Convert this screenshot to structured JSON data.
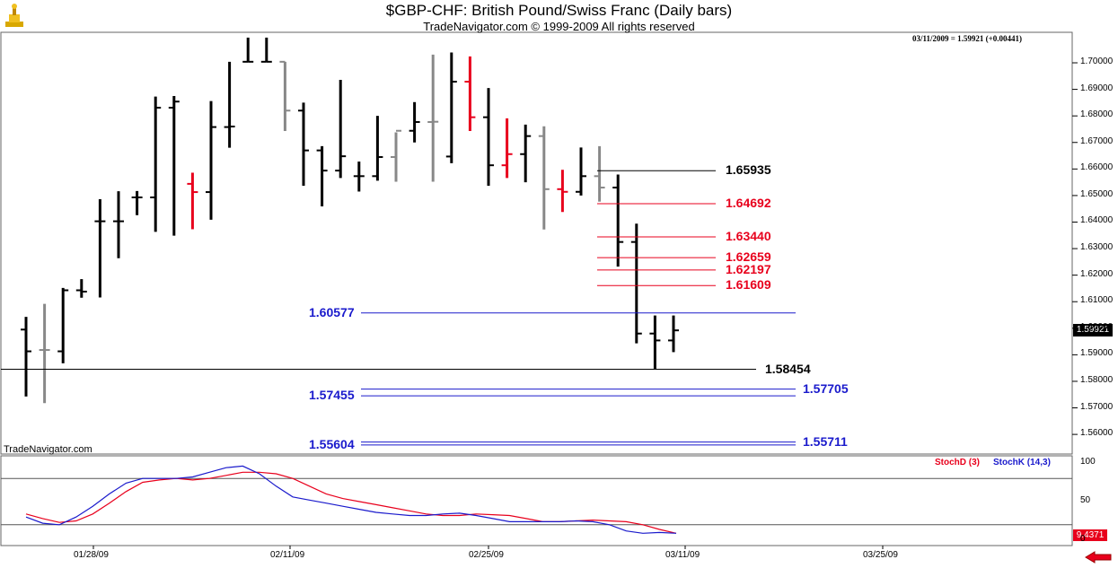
{
  "header": {
    "title": "$GBP-CHF:  British Pound/Swiss Franc  (Daily bars)",
    "subtitle": "TradeNavigator.com © 1999-2009 All rights reserved",
    "status": "03/11/2009 = 1.59921 (+0.00441)",
    "watermark": "TradeNavigator.com"
  },
  "colors": {
    "up": "#000000",
    "down": "#e8001c",
    "neutral": "#888888",
    "fib": "#e8001c",
    "blue": "#1a1acc",
    "stochD": "#e8001c",
    "stochK": "#1a1acc"
  },
  "chart_data": [
    {
      "type": "ohlc",
      "title": "$GBP-CHF:  British Pound/Swiss Franc  (Daily bars)",
      "ylim": [
        1.5526,
        1.7115
      ],
      "yticks": [
        "1.70000",
        "1.69000",
        "1.68000",
        "1.67000",
        "1.66000",
        "1.65000",
        "1.64000",
        "1.63000",
        "1.62000",
        "1.61000",
        "1.60000",
        "1.59000",
        "1.58000",
        "1.57000",
        "1.56000"
      ],
      "last_value": "1.59921",
      "xticks": [
        "01/28/09",
        "02/11/09",
        "02/25/09",
        "03/11/09",
        "03/25/09"
      ],
      "bars": [
        {
          "o": 1.5995,
          "h": 1.6043,
          "l": 1.5743,
          "c": 1.5913,
          "k": "up"
        },
        {
          "o": 1.5918,
          "h": 1.6092,
          "l": 1.5718,
          "c": 1.5918,
          "k": "neutral"
        },
        {
          "o": 1.5913,
          "h": 1.6152,
          "l": 1.5868,
          "c": 1.6143,
          "k": "up"
        },
        {
          "o": 1.6143,
          "h": 1.6185,
          "l": 1.6115,
          "c": 1.6138,
          "k": "up"
        },
        {
          "o": 1.6403,
          "h": 1.6486,
          "l": 1.6116,
          "c": 1.6403,
          "k": "up"
        },
        {
          "o": 1.6403,
          "h": 1.6516,
          "l": 1.6264,
          "c": 1.6403,
          "k": "up"
        },
        {
          "o": 1.6493,
          "h": 1.6517,
          "l": 1.6426,
          "c": 1.6493,
          "k": "up"
        },
        {
          "o": 1.6493,
          "h": 1.6873,
          "l": 1.6363,
          "c": 1.6831,
          "k": "up"
        },
        {
          "o": 1.6831,
          "h": 1.6875,
          "l": 1.6349,
          "c": 1.6854,
          "k": "up"
        },
        {
          "o": 1.6544,
          "h": 1.6586,
          "l": 1.6373,
          "c": 1.6513,
          "k": "down"
        },
        {
          "o": 1.6513,
          "h": 1.6856,
          "l": 1.6409,
          "c": 1.6758,
          "k": "up"
        },
        {
          "o": 1.6758,
          "h": 1.7004,
          "l": 1.668,
          "c": 1.676,
          "k": "up"
        },
        {
          "o": 1.7004,
          "h": 1.7095,
          "l": 1.7004,
          "c": 1.7004,
          "k": "up"
        },
        {
          "o": 1.7004,
          "h": 1.7095,
          "l": 1.7004,
          "c": 1.7004,
          "k": "up"
        },
        {
          "o": 1.7004,
          "h": 1.7004,
          "l": 1.6743,
          "c": 1.682,
          "k": "neutral"
        },
        {
          "o": 1.682,
          "h": 1.685,
          "l": 1.6537,
          "c": 1.667,
          "k": "up"
        },
        {
          "o": 1.667,
          "h": 1.6686,
          "l": 1.6459,
          "c": 1.6594,
          "k": "up"
        },
        {
          "o": 1.6594,
          "h": 1.6936,
          "l": 1.6566,
          "c": 1.6648,
          "k": "up"
        },
        {
          "o": 1.6573,
          "h": 1.6628,
          "l": 1.6515,
          "c": 1.6573,
          "k": "up"
        },
        {
          "o": 1.6573,
          "h": 1.68,
          "l": 1.6556,
          "c": 1.6645,
          "k": "up"
        },
        {
          "o": 1.6645,
          "h": 1.6738,
          "l": 1.6552,
          "c": 1.6744,
          "k": "neutral"
        },
        {
          "o": 1.6744,
          "h": 1.6852,
          "l": 1.67,
          "c": 1.6777,
          "k": "up"
        },
        {
          "o": 1.6777,
          "h": 1.7031,
          "l": 1.6552,
          "c": 1.6778,
          "k": "neutral"
        },
        {
          "o": 1.6647,
          "h": 1.7039,
          "l": 1.6622,
          "c": 1.6929,
          "k": "up"
        },
        {
          "o": 1.6929,
          "h": 1.7024,
          "l": 1.6743,
          "c": 1.6795,
          "k": "down"
        },
        {
          "o": 1.6795,
          "h": 1.6905,
          "l": 1.6537,
          "c": 1.6614,
          "k": "up"
        },
        {
          "o": 1.6614,
          "h": 1.6791,
          "l": 1.6566,
          "c": 1.6656,
          "k": "down"
        },
        {
          "o": 1.6656,
          "h": 1.6767,
          "l": 1.655,
          "c": 1.6724,
          "k": "up"
        },
        {
          "o": 1.6724,
          "h": 1.6761,
          "l": 1.6372,
          "c": 1.6524,
          "k": "neutral"
        },
        {
          "o": 1.6524,
          "h": 1.6597,
          "l": 1.6438,
          "c": 1.6514,
          "k": "down"
        },
        {
          "o": 1.6514,
          "h": 1.6681,
          "l": 1.65,
          "c": 1.6573,
          "k": "up"
        },
        {
          "o": 1.6573,
          "h": 1.6686,
          "l": 1.6477,
          "c": 1.653,
          "k": "neutral"
        },
        {
          "o": 1.653,
          "h": 1.6579,
          "l": 1.6232,
          "c": 1.6325,
          "k": "up"
        },
        {
          "o": 1.6325,
          "h": 1.6394,
          "l": 1.5943,
          "c": 1.598,
          "k": "up"
        },
        {
          "o": 1.598,
          "h": 1.6048,
          "l": 1.5846,
          "c": 1.5954,
          "k": "up"
        },
        {
          "o": 1.5954,
          "h": 1.6048,
          "l": 1.591,
          "c": 1.5992,
          "k": "up"
        }
      ],
      "levels": [
        {
          "value": "1.65935",
          "color": "black"
        },
        {
          "value": "1.64692",
          "color": "fib"
        },
        {
          "value": "1.63440",
          "color": "fib"
        },
        {
          "value": "1.62659",
          "color": "fib"
        },
        {
          "value": "1.62197",
          "color": "fib"
        },
        {
          "value": "1.61609",
          "color": "fib"
        },
        {
          "value": "1.60577",
          "color": "blue"
        },
        {
          "value": "1.58454",
          "color": "black"
        },
        {
          "value": "1.57455",
          "color": "blue"
        },
        {
          "value": "1.57705",
          "color": "blue"
        },
        {
          "value": "1.55604",
          "color": "blue"
        },
        {
          "value": "1.55711",
          "color": "blue"
        }
      ]
    },
    {
      "type": "line",
      "yticks": [
        "100",
        "50",
        "0"
      ],
      "ylim": [
        0,
        100
      ],
      "bands": [
        80,
        20
      ],
      "last_value": "9.4371",
      "series": [
        {
          "name": "StochD (3)",
          "color": "stochD",
          "values": [
            34,
            28,
            23,
            25,
            34,
            48,
            63,
            75,
            78,
            80,
            78,
            80,
            84,
            88,
            88,
            86,
            80,
            70,
            60,
            54,
            50,
            46,
            42,
            38,
            34,
            32,
            32,
            34,
            33,
            32,
            28,
            24,
            24,
            25,
            26,
            25,
            24,
            20,
            14,
            9
          ]
        },
        {
          "name": "StochK (14,3)",
          "color": "stochK",
          "values": [
            30,
            22,
            20,
            30,
            44,
            60,
            74,
            80,
            80,
            80,
            82,
            88,
            94,
            96,
            86,
            70,
            56,
            52,
            48,
            44,
            40,
            36,
            34,
            32,
            32,
            34,
            35,
            32,
            28,
            24,
            24,
            24,
            24,
            25,
            24,
            20,
            12,
            9,
            10,
            9
          ]
        }
      ]
    }
  ]
}
